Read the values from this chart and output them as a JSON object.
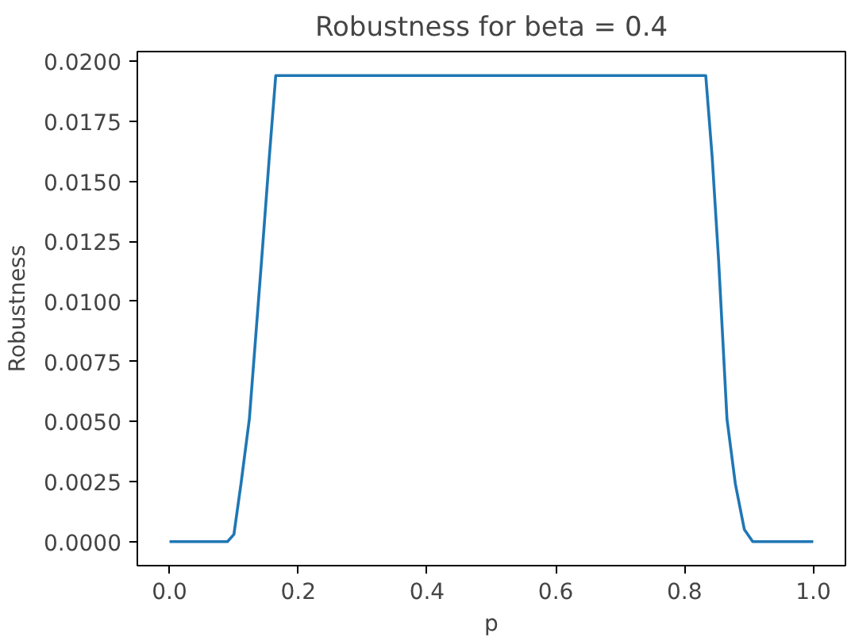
{
  "chart_data": {
    "type": "line",
    "title": "Robustness for beta = 0.4",
    "xlabel": "p",
    "ylabel": "Robustness",
    "x": [
      0.0,
      0.09,
      0.1,
      0.111,
      0.124,
      0.143,
      0.155,
      0.165,
      0.5,
      0.833,
      0.843,
      0.853,
      0.866,
      0.879,
      0.893,
      0.906,
      1.0
    ],
    "series": [
      {
        "color": "#1f77b4",
        "values": [
          0.0,
          0.0,
          0.0003,
          0.0024,
          0.0051,
          0.0117,
          0.016,
          0.0194,
          0.0194,
          0.0194,
          0.016,
          0.0117,
          0.0051,
          0.0024,
          0.0005,
          0.0,
          0.0
        ]
      }
    ],
    "xlim": [
      -0.05,
      1.05
    ],
    "xticks": [
      {
        "value": 0,
        "label": "0.0"
      },
      0.2,
      0.4,
      0.6,
      0.8,
      {
        "value": 1,
        "label": "1.0"
      }
    ],
    "ylim": [
      -0.001,
      0.0204
    ],
    "yticks": [
      {
        "value": 0,
        "label": "0.0000"
      },
      {
        "value": 0.0025,
        "label": "0.0025"
      },
      {
        "value": 0.005,
        "label": "0.0050"
      },
      {
        "value": 0.0075,
        "label": "0.0075"
      },
      {
        "value": 0.01,
        "label": "0.0100"
      },
      {
        "value": 0.0125,
        "label": "0.0125"
      },
      {
        "value": 0.015,
        "label": "0.0150"
      },
      {
        "value": 0.0175,
        "label": "0.0175"
      },
      {
        "value": 0.02,
        "label": "0.0200"
      }
    ],
    "grid": false
  }
}
